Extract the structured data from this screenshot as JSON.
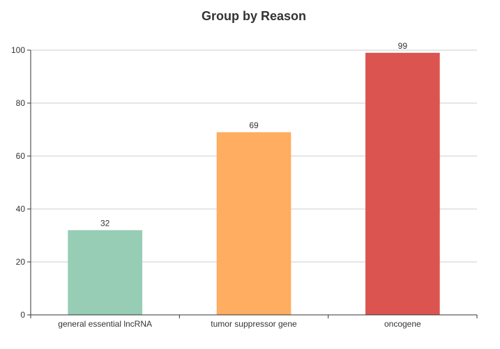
{
  "chart_data": {
    "type": "bar",
    "title": "Group by Reason",
    "xlabel": "",
    "ylabel": "",
    "categories": [
      "general essential lncRNA",
      "tumor suppressor gene",
      "oncogene"
    ],
    "values": [
      32,
      69,
      99
    ],
    "data_labels": [
      "32",
      "69",
      "99"
    ],
    "bar_colors": [
      "#96cdb4",
      "#ffad61",
      "#dc5450"
    ],
    "ylim": [
      0,
      100
    ],
    "yticks": [
      0,
      20,
      40,
      60,
      80,
      100
    ],
    "ytick_labels": [
      "0",
      "20",
      "40",
      "60",
      "80",
      "100"
    ],
    "grid": true,
    "legend": "none"
  },
  "colors": {
    "title": "#333333",
    "axis": "#333333",
    "grid": "#cccccc",
    "tick_label": "#333333",
    "data_label": "#333333"
  }
}
